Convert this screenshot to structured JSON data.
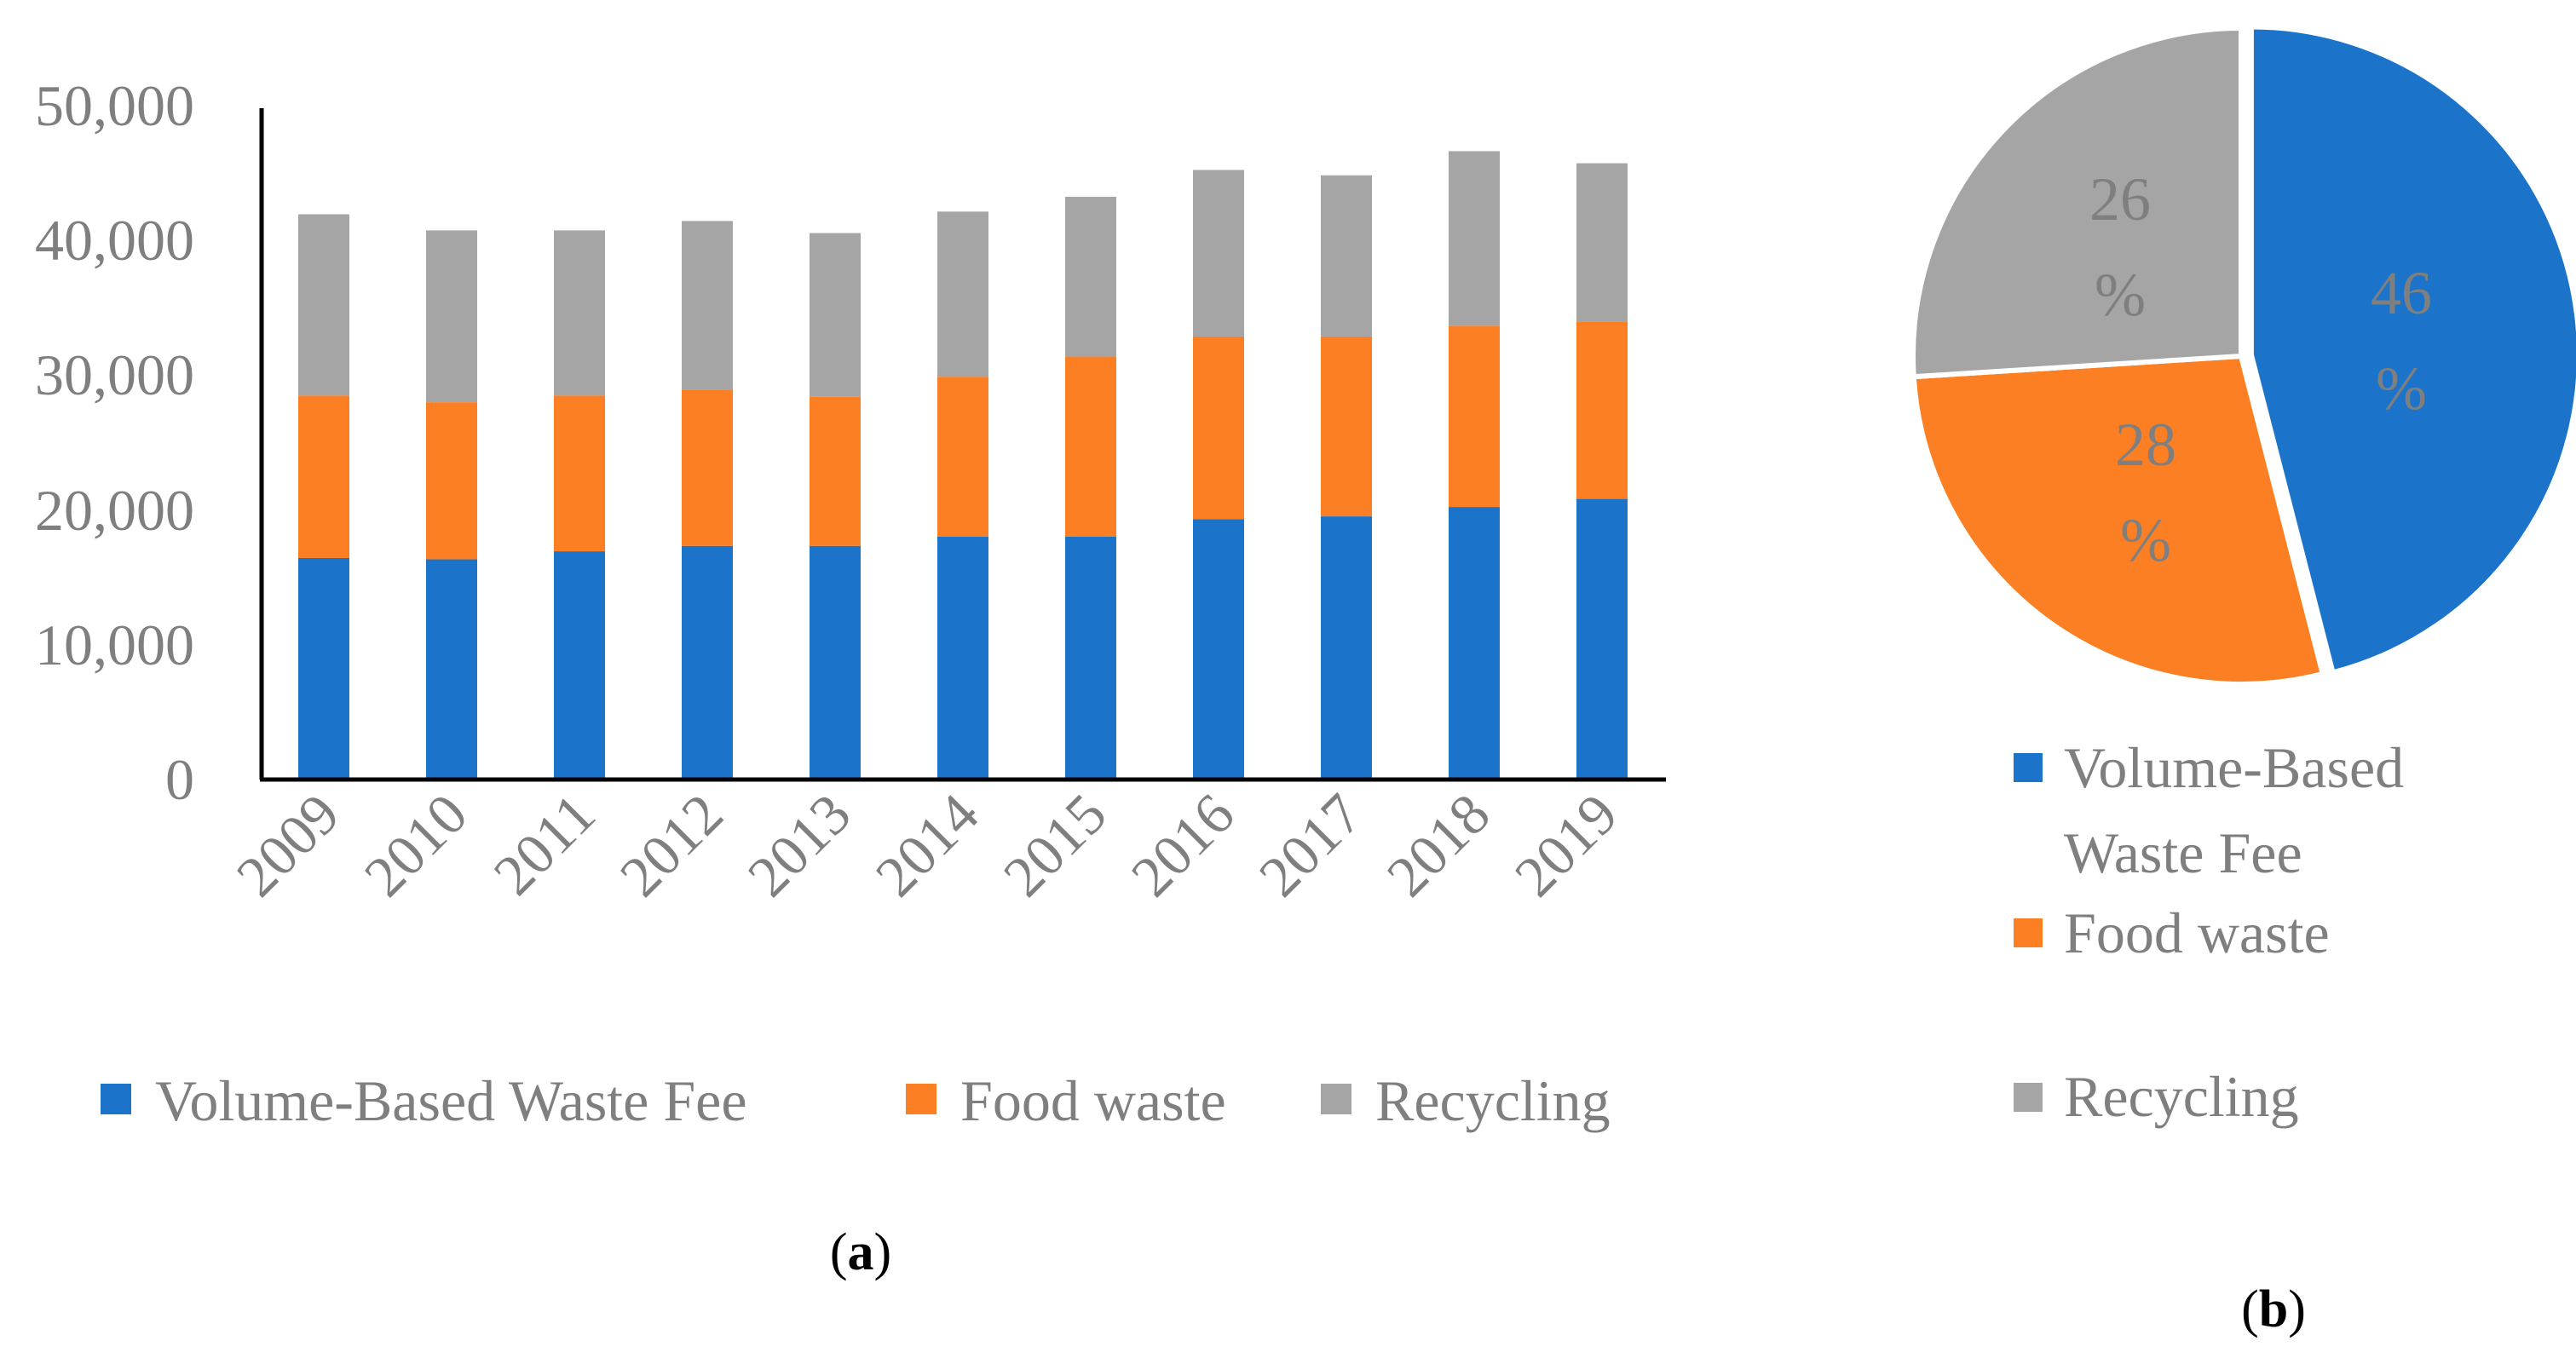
{
  "chart_data": [
    {
      "type": "bar",
      "stacked": true,
      "categories": [
        "2009",
        "2010",
        "2011",
        "2012",
        "2013",
        "2014",
        "2015",
        "2016",
        "2017",
        "2018",
        "2019"
      ],
      "series": [
        {
          "name": "Volume-Based Waste Fee",
          "color": "#1b74c9",
          "values": [
            16500,
            16400,
            17000,
            17400,
            17400,
            18100,
            18100,
            19400,
            19600,
            20300,
            20900
          ]
        },
        {
          "name": "Food waste",
          "color": "#fc7f24",
          "values": [
            12100,
            11700,
            11600,
            11600,
            11100,
            11900,
            13400,
            13600,
            13400,
            13500,
            13200
          ]
        },
        {
          "name": "Recycling",
          "color": "#a5a5a5",
          "values": [
            13500,
            12800,
            12300,
            12600,
            12200,
            12300,
            11900,
            12400,
            12000,
            13000,
            11800
          ]
        }
      ],
      "ylim": [
        0,
        50000
      ],
      "yticks": [
        "0",
        "10,000",
        "20,000",
        "30,000",
        "40,000",
        "50,000"
      ],
      "title": "",
      "xlabel": "",
      "ylabel": "",
      "legend": "bottom",
      "caption_open": "(",
      "caption_label": "a",
      "caption_close": ")"
    },
    {
      "type": "pie",
      "slices": [
        {
          "name": "Volume-Based Waste Fee",
          "value": 46,
          "label_top": "46",
          "label_bottom": "%",
          "color": "#1b74c9"
        },
        {
          "name": "Food waste",
          "value": 28,
          "label_top": "28",
          "label_bottom": "%",
          "color": "#fc7f24"
        },
        {
          "name": "Recycling",
          "value": 26,
          "label_top": "26",
          "label_bottom": "%",
          "color": "#a5a5a5"
        }
      ],
      "legend_labels": [
        {
          "line1": "Volume-Based",
          "line2": "Waste Fee"
        },
        {
          "line1": "Food waste",
          "line2": ""
        },
        {
          "line1": "Recycling",
          "line2": ""
        }
      ],
      "legend": "bottom",
      "caption_open": "(",
      "caption_label": "b",
      "caption_close": ")"
    }
  ]
}
